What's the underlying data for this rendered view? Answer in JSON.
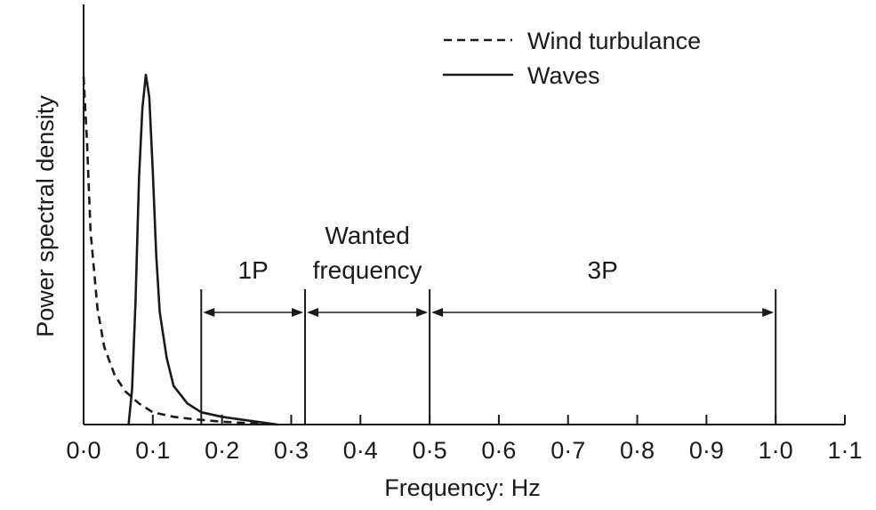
{
  "chart_data": {
    "type": "line",
    "title": "",
    "xlabel": "Frequency: Hz",
    "ylabel": "Power spectral density",
    "xlim": [
      0.0,
      1.1
    ],
    "ylim": [
      0,
      1
    ],
    "x_ticks": [
      0.0,
      0.1,
      0.2,
      0.3,
      0.4,
      0.5,
      0.6,
      0.7,
      0.8,
      0.9,
      1.0,
      1.1
    ],
    "x_tick_labels": [
      "0·0",
      "0·1",
      "0·2",
      "0·3",
      "0·4",
      "0·5",
      "0·6",
      "0·7",
      "0·8",
      "0·9",
      "1·0",
      "1·1"
    ],
    "y_ticks_shown": false,
    "grid": false,
    "legend_position": "top-right",
    "series": [
      {
        "name": "Wind turbulance",
        "style": "dashed",
        "x": [
          0.0,
          0.005,
          0.01,
          0.02,
          0.03,
          0.045,
          0.06,
          0.08,
          0.1,
          0.13,
          0.16,
          0.2,
          0.25,
          0.28
        ],
        "y": [
          0.99,
          0.8,
          0.55,
          0.33,
          0.22,
          0.14,
          0.095,
          0.06,
          0.035,
          0.022,
          0.015,
          0.008,
          0.003,
          0.0
        ]
      },
      {
        "name": "Waves",
        "style": "solid",
        "x": [
          0.065,
          0.07,
          0.075,
          0.08,
          0.085,
          0.09,
          0.095,
          0.1,
          0.105,
          0.11,
          0.12,
          0.13,
          0.15,
          0.17,
          0.2,
          0.25,
          0.28
        ],
        "y": [
          0.0,
          0.1,
          0.35,
          0.7,
          0.9,
          0.995,
          0.93,
          0.72,
          0.48,
          0.32,
          0.19,
          0.11,
          0.06,
          0.035,
          0.022,
          0.008,
          0.0
        ]
      }
    ],
    "bands": [
      {
        "label": "1P",
        "from": 0.17,
        "to": 0.32
      },
      {
        "label": "Wanted\nfrequency",
        "label_lines": [
          "Wanted",
          "frequency"
        ],
        "from": 0.32,
        "to": 0.5
      },
      {
        "label": "3P",
        "from": 0.5,
        "to": 1.0
      }
    ]
  }
}
